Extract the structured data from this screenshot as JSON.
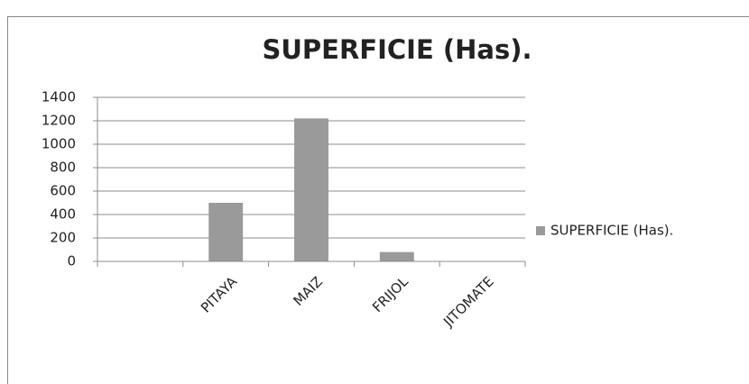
{
  "chart_data": {
    "type": "bar",
    "title": "SUPERFICIE (Has).",
    "categories": [
      null,
      "PITAYA",
      "MAIZ",
      "FRIJOL",
      "JITOMATE"
    ],
    "series": [
      {
        "name": "SUPERFICIE (Has).",
        "color": "#9a9a9a",
        "values": [
          0,
          500,
          1220,
          80,
          0
        ]
      }
    ],
    "ylim": [
      0,
      1400
    ],
    "yticks": [
      0,
      200,
      400,
      600,
      800,
      1000,
      1200,
      1400
    ],
    "grid": true,
    "legend": "right"
  }
}
